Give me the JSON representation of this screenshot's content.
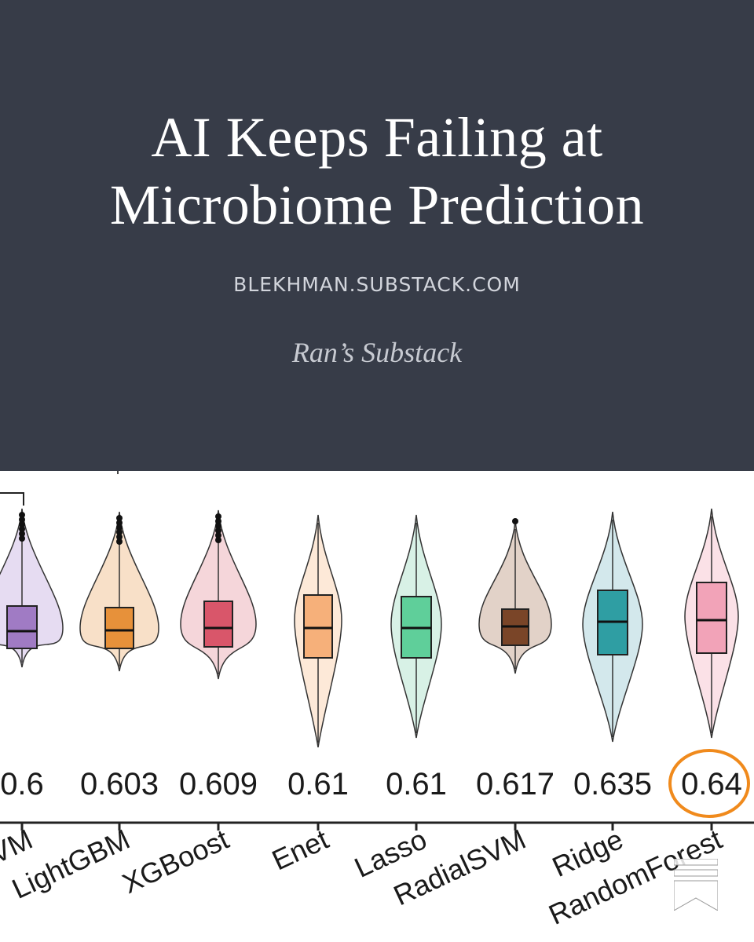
{
  "post": {
    "title_line1": "AI Keeps Failing at",
    "title_line2": "Microbiome Prediction",
    "domain": "BLEKHMAN.SUBSTACK.COM",
    "publication": "Ran’s Substack"
  },
  "colors": {
    "header_bg": "#373c48",
    "highlight_circle": "#f08a1c"
  },
  "figure": {
    "models": [
      {
        "label": "VM",
        "score": "0.6",
        "fill": "#a07bc4",
        "violin": "#e6dcf2"
      },
      {
        "label": "LightGBM",
        "score": "0.603",
        "fill": "#e7913a",
        "violin": "#f8e0c8"
      },
      {
        "label": "XGBoost",
        "score": "0.609",
        "fill": "#d9566a",
        "violin": "#f5d6da"
      },
      {
        "label": "Enet",
        "score": "0.61",
        "fill": "#f6b07a",
        "violin": "#fde9d8"
      },
      {
        "label": "Lasso",
        "score": "0.61",
        "fill": "#5fcf9a",
        "violin": "#d8f1e6"
      },
      {
        "label": "RadialSVM",
        "score": "0.617",
        "fill": "#7a4528",
        "violin": "#e2d2c8"
      },
      {
        "label": "Ridge",
        "score": "0.635",
        "fill": "#2f9ea3",
        "violin": "#d3e8ec"
      },
      {
        "label": "RandomForest",
        "score": "0.64",
        "fill": "#f2a3b8",
        "violin": "#fbe1e7"
      }
    ],
    "highlighted_model": "RandomForest"
  },
  "logo": {
    "icon": "substack-bookmark-icon"
  }
}
